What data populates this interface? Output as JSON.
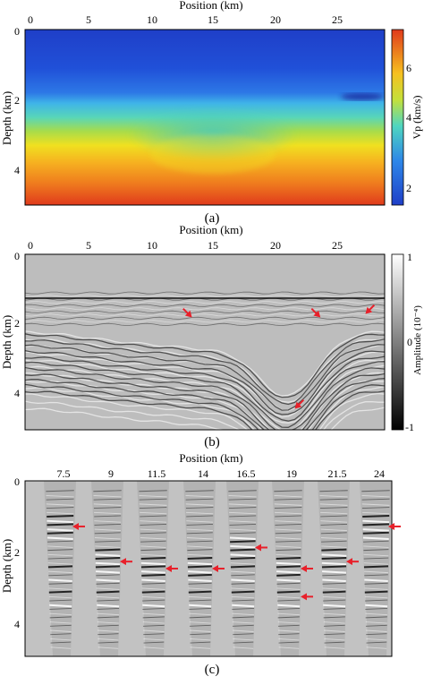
{
  "panel_a": {
    "xlabel": "Position (km)",
    "ylabel": "Depth (km)",
    "x_ticks": [
      "0",
      "5",
      "10",
      "15",
      "20",
      "25"
    ],
    "y_ticks": [
      "0",
      "2",
      "4"
    ],
    "colorbar_label": "Vp (km/s)",
    "colorbar_ticks": [
      "6",
      "4",
      "2"
    ],
    "caption": "(a)"
  },
  "panel_b": {
    "xlabel": "Position (km)",
    "ylabel": "Depth (km)",
    "x_ticks": [
      "0",
      "5",
      "10",
      "15",
      "20",
      "25"
    ],
    "y_ticks": [
      "0",
      "2",
      "4"
    ],
    "colorbar_label": "Amplitude (10⁻⁴)",
    "colorbar_ticks": [
      "1",
      "0",
      "-1"
    ],
    "caption": "(b)"
  },
  "panel_c": {
    "xlabel": "Position (km)",
    "ylabel": "Depth (km)",
    "x_ticks": [
      "7.5",
      "9",
      "11.5",
      "14",
      "16.5",
      "19",
      "21.5",
      "24"
    ],
    "y_ticks": [
      "0",
      "2",
      "4"
    ],
    "caption": "(c)"
  },
  "colors": {
    "arrow": "#e8202a",
    "velocity_low": "#1f3fc8",
    "velocity_high": "#e03a1c"
  },
  "chart_data": [
    {
      "type": "heatmap",
      "title": "",
      "xlabel": "Position (km)",
      "ylabel": "Depth (km)",
      "xlim": [
        0,
        28
      ],
      "ylim": [
        5,
        0
      ],
      "colorbar": {
        "label": "Vp (km/s)",
        "range": [
          1.5,
          6.5
        ],
        "ticks": [
          2,
          4,
          6
        ]
      },
      "depth_profile": [
        {
          "depth": 0.0,
          "vp": 1.5
        },
        {
          "depth": 1.4,
          "vp": 1.9
        },
        {
          "depth": 2.0,
          "vp": 2.9
        },
        {
          "depth": 2.6,
          "vp": 4.0
        },
        {
          "depth": 3.6,
          "vp": 5.3
        },
        {
          "depth": 5.0,
          "vp": 6.3
        }
      ]
    },
    {
      "type": "heatmap",
      "title": "",
      "xlabel": "Position (km)",
      "ylabel": "Depth (km)",
      "xlim": [
        0,
        28
      ],
      "ylim": [
        5,
        0
      ],
      "colorbar": {
        "label": "Amplitude (10⁻⁴)",
        "range": [
          -1,
          1
        ],
        "ticks": [
          -1,
          0,
          1
        ]
      },
      "arrows": [
        {
          "x": 13,
          "depth": 1.8
        },
        {
          "x": 23,
          "depth": 1.8
        },
        {
          "x": 26.5,
          "depth": 1.7
        },
        {
          "x": 21,
          "depth": 4.4
        }
      ]
    },
    {
      "type": "heatmap",
      "title": "",
      "xlabel": "Position (km)",
      "ylabel": "Depth (km)",
      "categories": [
        "7.5",
        "9",
        "11.5",
        "14",
        "16.5",
        "19",
        "21.5",
        "24"
      ],
      "ylim": [
        5,
        0
      ],
      "arrows": [
        {
          "gather": "7.5",
          "depth": 1.3
        },
        {
          "gather": "9",
          "depth": 2.3
        },
        {
          "gather": "11.5",
          "depth": 2.5
        },
        {
          "gather": "14",
          "depth": 2.5
        },
        {
          "gather": "16.5",
          "depth": 1.9
        },
        {
          "gather": "19",
          "depth": 2.5
        },
        {
          "gather": "19",
          "depth": 3.3
        },
        {
          "gather": "21.5",
          "depth": 2.3
        },
        {
          "gather": "24",
          "depth": 1.3
        }
      ]
    }
  ]
}
